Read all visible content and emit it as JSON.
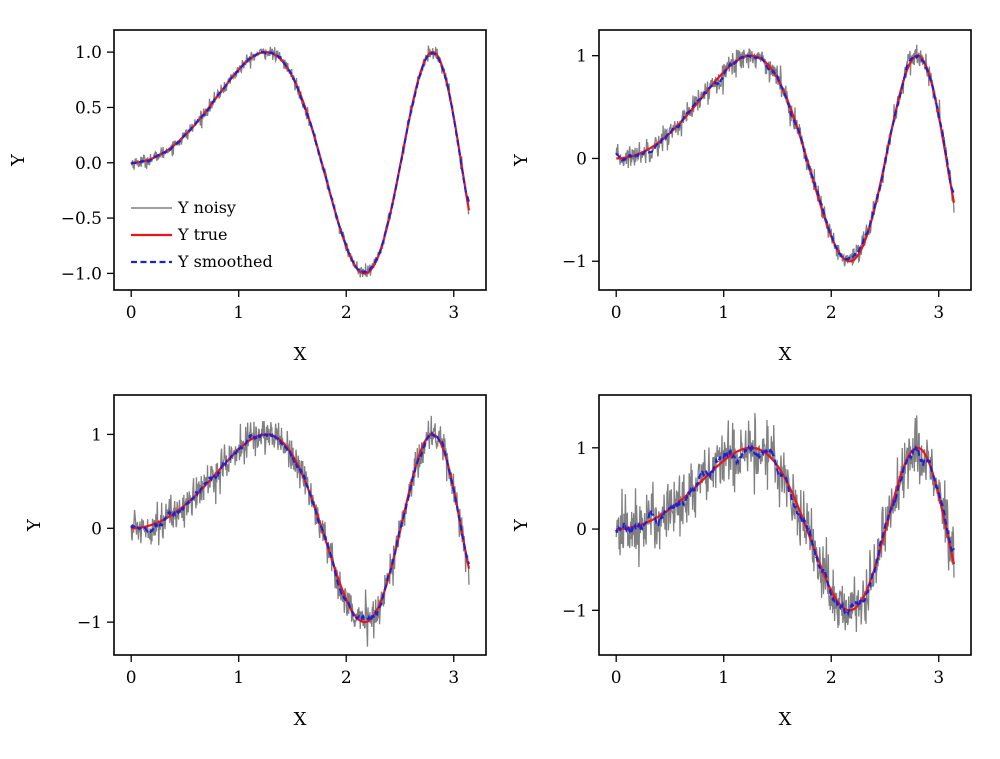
{
  "chart_data": [
    {
      "type": "line",
      "xlabel": "X",
      "ylabel": "Y",
      "xlim": [
        -0.16,
        3.3
      ],
      "ylim": [
        -1.15,
        1.2
      ],
      "xticks": [
        0,
        1,
        2,
        3
      ],
      "xtick_labels": [
        "0",
        "1",
        "2",
        "3"
      ],
      "yticks": [
        -1.0,
        -0.5,
        0.0,
        0.5,
        1.0
      ],
      "ytick_labels": [
        "−1.0",
        "−0.5",
        "0.0",
        "0.5",
        "1.0"
      ],
      "noise_level": 0.03,
      "legend": {
        "placement": "lower-left",
        "entries": [
          "Y noisy",
          "Y true",
          "Y smoothed"
        ]
      },
      "series": [
        {
          "name": "Y noisy",
          "color": "#808080",
          "style": "solid",
          "function": "sin(x^2)",
          "x_range": [
            0,
            3.1416
          ]
        },
        {
          "name": "Y true",
          "color": "#e8161b",
          "style": "solid",
          "function": "sin(x^2)",
          "x_range": [
            0,
            3.1416
          ]
        },
        {
          "name": "Y smoothed",
          "color": "#1f1fd6",
          "style": "dashed",
          "function": "sin(x^2)",
          "x_range": [
            0,
            3.1416
          ]
        }
      ]
    },
    {
      "type": "line",
      "xlabel": "X",
      "ylabel": "Y",
      "xlim": [
        -0.16,
        3.3
      ],
      "ylim": [
        -1.28,
        1.25
      ],
      "xticks": [
        0,
        1,
        2,
        3
      ],
      "xtick_labels": [
        "0",
        "1",
        "2",
        "3"
      ],
      "yticks": [
        -1,
        0,
        1
      ],
      "ytick_labels": [
        "−1",
        "0",
        "1"
      ],
      "noise_level": 0.06,
      "series": [
        {
          "name": "Y noisy",
          "color": "#808080",
          "style": "solid",
          "function": "sin(x^2)",
          "x_range": [
            0,
            3.1416
          ]
        },
        {
          "name": "Y true",
          "color": "#e8161b",
          "style": "solid",
          "function": "sin(x^2)",
          "x_range": [
            0,
            3.1416
          ]
        },
        {
          "name": "Y smoothed",
          "color": "#1f1fd6",
          "style": "dashed",
          "function": "sin(x^2)",
          "x_range": [
            0,
            3.1416
          ]
        }
      ]
    },
    {
      "type": "line",
      "xlabel": "X",
      "ylabel": "Y",
      "xlim": [
        -0.16,
        3.3
      ],
      "ylim": [
        -1.35,
        1.42
      ],
      "xticks": [
        0,
        1,
        2,
        3
      ],
      "xtick_labels": [
        "0",
        "1",
        "2",
        "3"
      ],
      "yticks": [
        -1,
        0,
        1
      ],
      "ytick_labels": [
        "−1",
        "0",
        "1"
      ],
      "noise_level": 0.1,
      "series": [
        {
          "name": "Y noisy",
          "color": "#808080",
          "style": "solid",
          "function": "sin(x^2)",
          "x_range": [
            0,
            3.1416
          ]
        },
        {
          "name": "Y true",
          "color": "#e8161b",
          "style": "solid",
          "function": "sin(x^2)",
          "x_range": [
            0,
            3.1416
          ]
        },
        {
          "name": "Y smoothed",
          "color": "#1f1fd6",
          "style": "dashed",
          "function": "sin(x^2)",
          "x_range": [
            0,
            3.1416
          ]
        }
      ]
    },
    {
      "type": "line",
      "xlabel": "X",
      "ylabel": "Y",
      "xlim": [
        -0.16,
        3.3
      ],
      "ylim": [
        -1.55,
        1.65
      ],
      "xticks": [
        0,
        1,
        2,
        3
      ],
      "xtick_labels": [
        "0",
        "1",
        "2",
        "3"
      ],
      "yticks": [
        -1,
        0,
        1
      ],
      "ytick_labels": [
        "−1",
        "0",
        "1"
      ],
      "noise_level": 0.2,
      "series": [
        {
          "name": "Y noisy",
          "color": "#808080",
          "style": "solid",
          "function": "sin(x^2)",
          "x_range": [
            0,
            3.1416
          ]
        },
        {
          "name": "Y true",
          "color": "#e8161b",
          "style": "solid",
          "function": "sin(x^2)",
          "x_range": [
            0,
            3.1416
          ]
        },
        {
          "name": "Y smoothed",
          "color": "#1f1fd6",
          "style": "dashed",
          "function": "sin(x^2)",
          "x_range": [
            0,
            3.1416
          ]
        }
      ]
    }
  ]
}
